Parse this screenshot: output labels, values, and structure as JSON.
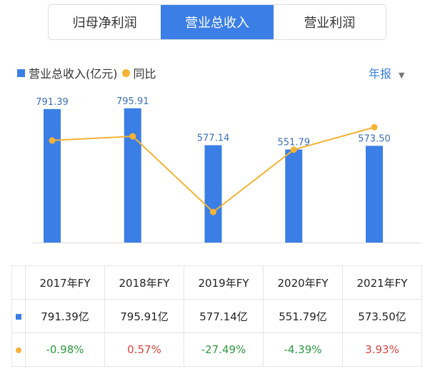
{
  "tabs": [
    {
      "label": "归母净利润",
      "active": false
    },
    {
      "label": "营业总收入",
      "active": true
    },
    {
      "label": "营业利润",
      "active": false
    }
  ],
  "legend": {
    "bar": "营业总收入(亿元)",
    "line": "同比"
  },
  "period": {
    "label": "年报",
    "icon": "triangle-down-icon"
  },
  "colors": {
    "bar": "#3b7fe6",
    "line": "#f5b335",
    "positive": "#d9433c",
    "negative": "#2e9a40"
  },
  "chart_data": {
    "type": "bar+line",
    "categories": [
      "2017年FY",
      "2018年FY",
      "2019年FY",
      "2020年FY",
      "2021年FY"
    ],
    "series": [
      {
        "name": "营业总收入(亿元)",
        "type": "bar",
        "values": [
          791.39,
          795.91,
          577.14,
          551.79,
          573.5
        ],
        "labels": [
          "791.39",
          "795.91",
          "577.14",
          "551.79",
          "573.50"
        ]
      },
      {
        "name": "同比",
        "type": "line",
        "values": [
          -0.98,
          0.57,
          -27.49,
          -4.39,
          3.93
        ]
      }
    ]
  },
  "table": {
    "headers": [
      "2017年FY",
      "2018年FY",
      "2019年FY",
      "2020年FY",
      "2021年FY"
    ],
    "revenue": [
      "791.39亿",
      "795.91亿",
      "577.14亿",
      "551.79亿",
      "573.50亿"
    ],
    "yoy": [
      "-0.98%",
      "0.57%",
      "-27.49%",
      "-4.39%",
      "3.93%"
    ]
  }
}
